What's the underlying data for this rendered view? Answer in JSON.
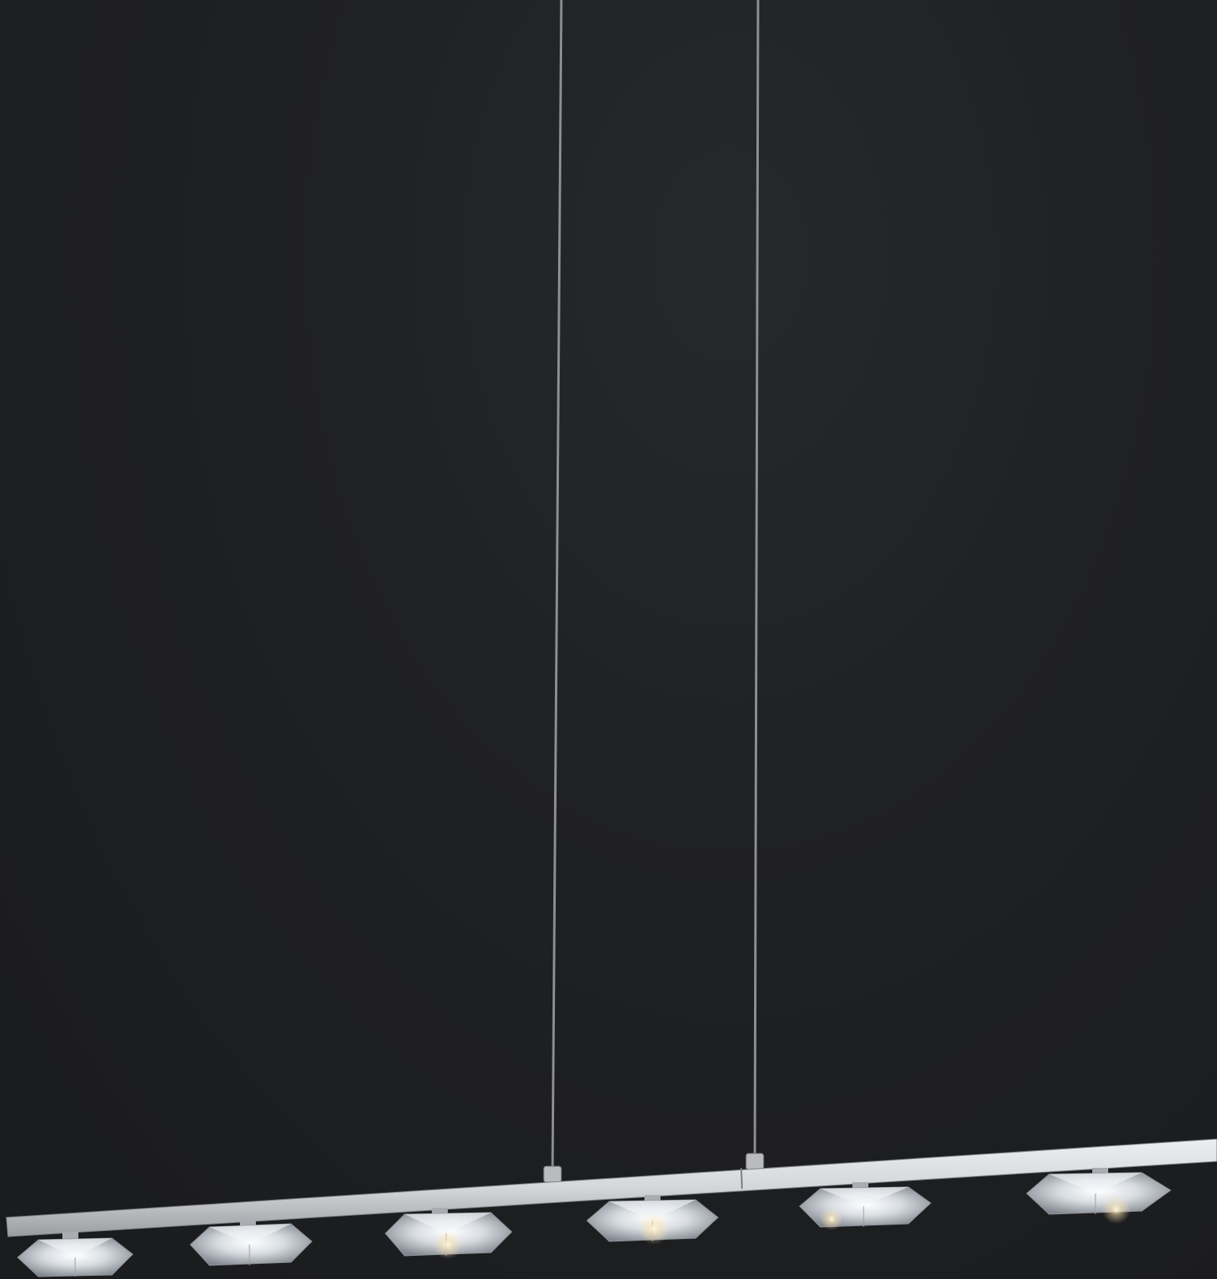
{
  "scene": {
    "subject": "linear-crystal-pendant-light",
    "background_color": "#1d1e20",
    "bar_color": "#d9dadc",
    "cable_color": "#8a8c8f",
    "crystal_color": "#e8ecef",
    "crystal_count": 6,
    "cable_count": 2
  }
}
